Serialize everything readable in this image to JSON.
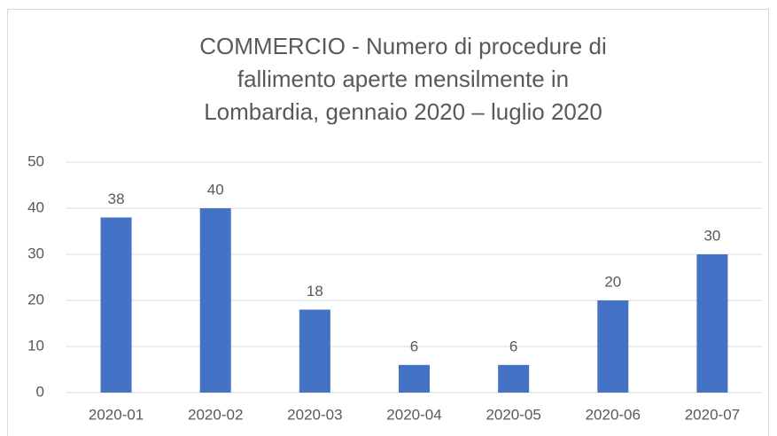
{
  "chart_data": {
    "type": "bar",
    "title": "COMMERCIO - Numero di  procedure di fallimento aperte mensilmente in Lombardia, gennaio 2020 – luglio 2020",
    "categories": [
      "2020-01",
      "2020-02",
      "2020-03",
      "2020-04",
      "2020-05",
      "2020-06",
      "2020-07"
    ],
    "values": [
      38,
      40,
      18,
      6,
      6,
      20,
      30
    ],
    "color": "#4472c4",
    "ylim": [
      0,
      50
    ],
    "yticks": [
      0,
      10,
      20,
      30,
      40,
      50
    ],
    "grid": true
  }
}
